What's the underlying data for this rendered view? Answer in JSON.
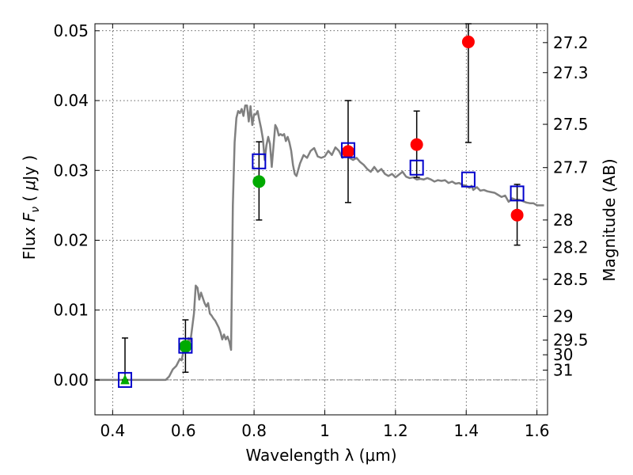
{
  "chart_data": {
    "type": "scatter",
    "xlabel": "Wavelength  λ (μm)",
    "ylabel_parts": {
      "a": "Flux  ",
      "b": "F",
      "sub": "ν",
      "c": "  (  ",
      "d": "μ",
      "e": "Jy )"
    },
    "y2label": "Magnitude (AB)",
    "xlim": [
      0.35,
      1.63
    ],
    "ylim": [
      -0.005,
      0.051
    ],
    "grid": true,
    "x_ticks": [
      {
        "value": 0.4,
        "label": "0.4"
      },
      {
        "value": 0.6,
        "label": "0.6"
      },
      {
        "value": 0.8,
        "label": "0.8"
      },
      {
        "value": 1.0,
        "label": "1"
      },
      {
        "value": 1.2,
        "label": "1.2"
      },
      {
        "value": 1.4,
        "label": "1.4"
      },
      {
        "value": 1.6,
        "label": "1.6"
      }
    ],
    "y_ticks": [
      {
        "value": 0.0,
        "label": "0.00"
      },
      {
        "value": 0.01,
        "label": "0.01"
      },
      {
        "value": 0.02,
        "label": "0.02"
      },
      {
        "value": 0.03,
        "label": "0.03"
      },
      {
        "value": 0.04,
        "label": "0.04"
      },
      {
        "value": 0.05,
        "label": "0.05"
      }
    ],
    "magnitude_ticks": [
      {
        "flux": 0.0483,
        "label": "27.2"
      },
      {
        "flux": 0.044,
        "label": "27.3"
      },
      {
        "flux": 0.0366,
        "label": "27.5"
      },
      {
        "flux": 0.0304,
        "label": "27.7"
      },
      {
        "flux": 0.0229,
        "label": "28"
      },
      {
        "flux": 0.019,
        "label": "28.2"
      },
      {
        "flux": 0.0144,
        "label": "28.5"
      },
      {
        "flux": 0.0091,
        "label": "29"
      },
      {
        "flux": 0.0057,
        "label": "29.5"
      },
      {
        "flux": 0.0036,
        "label": "30"
      },
      {
        "flux": 0.0014,
        "label": "31"
      }
    ],
    "model_spectrum": {
      "color": "#808080",
      "x": [
        0.35,
        0.55,
        0.56,
        0.57,
        0.58,
        0.59,
        0.595,
        0.6,
        0.605,
        0.61,
        0.615,
        0.62,
        0.63,
        0.635,
        0.64,
        0.645,
        0.65,
        0.66,
        0.665,
        0.67,
        0.675,
        0.68,
        0.685,
        0.69,
        0.7,
        0.705,
        0.71,
        0.715,
        0.72,
        0.725,
        0.73,
        0.735,
        0.74,
        0.745,
        0.75,
        0.755,
        0.76,
        0.765,
        0.77,
        0.775,
        0.78,
        0.785,
        0.79,
        0.795,
        0.8,
        0.805,
        0.81,
        0.815,
        0.82,
        0.825,
        0.83,
        0.835,
        0.84,
        0.845,
        0.85,
        0.855,
        0.86,
        0.865,
        0.87,
        0.875,
        0.88,
        0.885,
        0.89,
        0.895,
        0.9,
        0.905,
        0.91,
        0.915,
        0.92,
        0.93,
        0.94,
        0.95,
        0.96,
        0.97,
        0.98,
        0.99,
        1.0,
        1.01,
        1.02,
        1.03,
        1.04,
        1.05,
        1.06,
        1.07,
        1.08,
        1.09,
        1.1,
        1.11,
        1.12,
        1.13,
        1.14,
        1.15,
        1.16,
        1.17,
        1.18,
        1.19,
        1.2,
        1.21,
        1.22,
        1.23,
        1.24,
        1.25,
        1.26,
        1.27,
        1.28,
        1.29,
        1.3,
        1.31,
        1.32,
        1.33,
        1.34,
        1.35,
        1.36,
        1.37,
        1.38,
        1.39,
        1.4,
        1.405,
        1.41,
        1.415,
        1.42,
        1.43,
        1.44,
        1.45,
        1.46,
        1.47,
        1.48,
        1.49,
        1.5,
        1.51,
        1.52,
        1.53,
        1.54,
        1.55,
        1.56,
        1.57,
        1.58,
        1.59,
        1.6,
        1.62
      ],
      "y": [
        0.0,
        0.0,
        0.0005,
        0.0015,
        0.002,
        0.003,
        0.0028,
        0.004,
        0.0055,
        0.0045,
        0.006,
        0.0055,
        0.0095,
        0.0135,
        0.0132,
        0.0115,
        0.0125,
        0.011,
        0.0105,
        0.011,
        0.0095,
        0.0092,
        0.0088,
        0.0085,
        0.0075,
        0.0068,
        0.0058,
        0.0065,
        0.0058,
        0.0062,
        0.0055,
        0.0043,
        0.025,
        0.034,
        0.0375,
        0.0385,
        0.0382,
        0.0388,
        0.0378,
        0.0393,
        0.0393,
        0.037,
        0.0392,
        0.0365,
        0.038,
        0.038,
        0.0385,
        0.0372,
        0.036,
        0.0345,
        0.0315,
        0.0336,
        0.0348,
        0.0338,
        0.0305,
        0.0335,
        0.0365,
        0.036,
        0.035,
        0.0352,
        0.035,
        0.0352,
        0.0342,
        0.0348,
        0.034,
        0.0328,
        0.0308,
        0.0295,
        0.0292,
        0.031,
        0.0322,
        0.0318,
        0.0328,
        0.0332,
        0.032,
        0.0318,
        0.032,
        0.0328,
        0.0322,
        0.0333,
        0.0328,
        0.0318,
        0.0325,
        0.0318,
        0.0315,
        0.0318,
        0.0312,
        0.0308,
        0.0302,
        0.0298,
        0.0305,
        0.0298,
        0.0302,
        0.0295,
        0.0292,
        0.0295,
        0.029,
        0.0294,
        0.0298,
        0.0291,
        0.0289,
        0.029,
        0.0287,
        0.0288,
        0.0287,
        0.0289,
        0.0287,
        0.0284,
        0.0286,
        0.0285,
        0.0286,
        0.0282,
        0.0284,
        0.0281,
        0.0282,
        0.0279,
        0.0278,
        0.0276,
        0.0275,
        0.0278,
        0.0272,
        0.0276,
        0.0271,
        0.0272,
        0.027,
        0.0269,
        0.0268,
        0.0265,
        0.0262,
        0.0264,
        0.0255,
        0.026,
        0.0258,
        0.0258,
        0.0256,
        0.0254,
        0.0253,
        0.0253,
        0.025,
        0.025
      ]
    },
    "photometry_green": [
      {
        "x": 0.435,
        "y": 0.0,
        "yerr_low": 0.0,
        "yerr_high": 0.006,
        "marker": "triangle",
        "color": "#00aa00"
      },
      {
        "x": 0.606,
        "y": 0.0048,
        "yerr_low": 0.0011,
        "yerr_high": 0.0086,
        "marker": "circle",
        "color": "#00aa00"
      },
      {
        "x": 0.814,
        "y": 0.0284,
        "yerr_low": 0.0229,
        "yerr_high": 0.0341,
        "marker": "circle",
        "color": "#00aa00"
      }
    ],
    "photometry_red": [
      {
        "x": 1.066,
        "y": 0.0327,
        "yerr_low": 0.0254,
        "yerr_high": 0.04,
        "color": "#ff0000"
      },
      {
        "x": 1.26,
        "y": 0.0337,
        "yerr_low": 0.029,
        "yerr_high": 0.0385,
        "color": "#ff0000"
      },
      {
        "x": 1.406,
        "y": 0.0484,
        "yerr_low": 0.034,
        "yerr_high": 0.051,
        "color": "#ff0000"
      },
      {
        "x": 1.544,
        "y": 0.0236,
        "yerr_low": 0.0193,
        "yerr_high": 0.028,
        "color": "#ff0000"
      }
    ],
    "model_bandpass_points": {
      "color": "#0000cc",
      "points": [
        {
          "x": 0.435,
          "y": 0.0
        },
        {
          "x": 0.606,
          "y": 0.0049
        },
        {
          "x": 0.814,
          "y": 0.0313
        },
        {
          "x": 1.066,
          "y": 0.0329
        },
        {
          "x": 1.26,
          "y": 0.0304
        },
        {
          "x": 1.406,
          "y": 0.0287
        },
        {
          "x": 1.544,
          "y": 0.0267
        }
      ]
    },
    "zero_line_color": "#555555"
  }
}
